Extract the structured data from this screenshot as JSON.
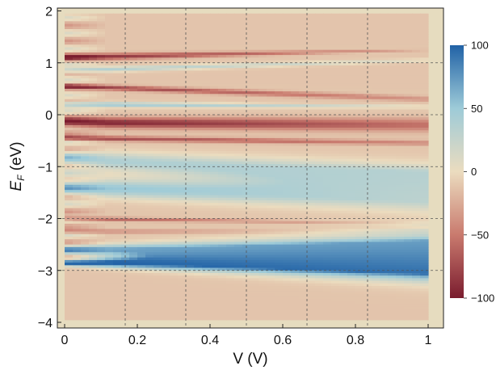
{
  "chart_data": {
    "type": "heatmap",
    "title": "",
    "xlabel": "V (V)",
    "ylabel": {
      "main": "E",
      "sub": "F",
      "unit": " (eV)"
    },
    "xlim": [
      0,
      1
    ],
    "ylim": [
      -4.2,
      2.1
    ],
    "xticks": [
      0,
      0.2,
      0.4,
      0.6,
      0.8,
      1
    ],
    "xtick_labels": [
      "0",
      "0.2",
      "0.4",
      "0.6",
      "0.8",
      "1"
    ],
    "yticks": [
      -4,
      -3,
      -2,
      -1,
      0,
      1,
      2
    ],
    "ytick_labels": [
      "−4",
      "−3",
      "−2",
      "−1",
      "0",
      "1",
      "2"
    ],
    "grid": {
      "x": [
        0.1667,
        0.3333,
        0.5,
        0.6667,
        0.8333
      ],
      "y": [
        -3,
        -2,
        -1,
        0,
        1
      ],
      "style": "dashed"
    },
    "data_region": {
      "x": [
        0,
        1
      ],
      "y": [
        -3.95,
        1.95
      ]
    },
    "colorbar": {
      "range": [
        -100,
        100
      ],
      "ticks": [
        100,
        50,
        0,
        -50,
        -100
      ],
      "tick_labels": [
        "100",
        "50",
        "0",
        "−50",
        "−100"
      ],
      "colors": {
        "-100": "#7a1c2e",
        "-50": "#c97a6e",
        "0": "#ebdcbf",
        "50": "#9ecbd8",
        "100": "#2162a6"
      }
    },
    "bands": [
      {
        "name": "upper-red",
        "start": 1.1,
        "end": 1.25,
        "width_start": 0.14,
        "width_end": 0.05,
        "value_start": -95,
        "value_end": -25
      },
      {
        "name": "upper-blue",
        "start": 0.85,
        "end": 1.05,
        "width_start": 0.1,
        "width_end": 0.06,
        "value_start": 40,
        "value_end": 5
      },
      {
        "name": "mid-red",
        "start": 0.55,
        "end": 0.3,
        "width_start": 0.1,
        "width_end": 0.12,
        "value_start": -85,
        "value_end": -35
      },
      {
        "name": "mid-blue",
        "start": 0.2,
        "end": 0.15,
        "width_start": 0.1,
        "width_end": 0.05,
        "value_start": 55,
        "value_end": 10
      },
      {
        "name": "center-red",
        "start": -0.15,
        "end": -0.2,
        "width_start": 0.2,
        "width_end": 0.28,
        "value_start": -100,
        "value_end": -55
      },
      {
        "name": "lower-red",
        "start": -0.45,
        "end": -0.55,
        "width_start": 0.1,
        "width_end": 0.1,
        "value_start": -80,
        "value_end": -40
      },
      {
        "name": "blue-wide",
        "start": -0.85,
        "end": -1.2,
        "width_start": 0.3,
        "width_end": 0.45,
        "value_start": 40,
        "value_end": 35
      },
      {
        "name": "blue-lower",
        "start": -1.4,
        "end": -1.6,
        "width_start": 0.3,
        "width_end": 0.5,
        "value_start": 55,
        "value_end": 30
      },
      {
        "name": "red-2",
        "start": -2.0,
        "end": -2.1,
        "width_start": 0.08,
        "width_end": 0.06,
        "value_start": -70,
        "value_end": -15
      },
      {
        "name": "red-2b",
        "start": -2.25,
        "end": -2.25,
        "width_start": 0.07,
        "width_end": 0.06,
        "value_start": -55,
        "value_end": -15
      },
      {
        "name": "blue-big",
        "start": -2.6,
        "end": -2.6,
        "width_start": 0.15,
        "width_end": 0.55,
        "value_start": 70,
        "value_end": 65
      },
      {
        "name": "blue-dark",
        "start": -2.85,
        "end": -2.9,
        "width_start": 0.12,
        "width_end": 0.55,
        "value_start": 100,
        "value_end": 100
      }
    ]
  }
}
